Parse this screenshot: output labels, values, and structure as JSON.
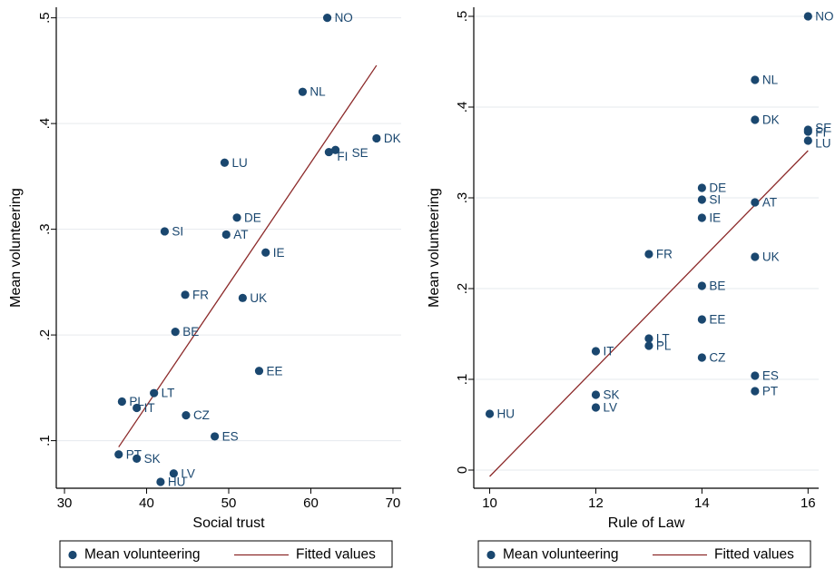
{
  "chart_data": [
    {
      "type": "scatter",
      "xlabel": "Social trust",
      "ylabel": "Mean volunteering",
      "xlim": [
        29,
        71
      ],
      "ylim": [
        0.055,
        0.51
      ],
      "xticks": [
        30,
        40,
        50,
        60,
        70
      ],
      "yticks": [
        0.1,
        0.2,
        0.3,
        0.4,
        0.5
      ],
      "ytick_labels": [
        ".1",
        ".2",
        ".3",
        ".4",
        ".5"
      ],
      "grid": true,
      "series": [
        {
          "name": "Mean volunteering",
          "marker_color": "#1a476f",
          "points": [
            {
              "label": "NO",
              "x": 62.0,
              "y": 0.5
            },
            {
              "label": "NL",
              "x": 59.0,
              "y": 0.43
            },
            {
              "label": "DK",
              "x": 68.0,
              "y": 0.386
            },
            {
              "label": "SE",
              "x": 63.0,
              "y": 0.375
            },
            {
              "label": "FI",
              "x": 62.2,
              "y": 0.373
            },
            {
              "label": "LU",
              "x": 49.5,
              "y": 0.363
            },
            {
              "label": "DE",
              "x": 51.0,
              "y": 0.311
            },
            {
              "label": "SI",
              "x": 42.2,
              "y": 0.298
            },
            {
              "label": "AT",
              "x": 49.7,
              "y": 0.295
            },
            {
              "label": "IE",
              "x": 54.5,
              "y": 0.278
            },
            {
              "label": "FR",
              "x": 44.7,
              "y": 0.238
            },
            {
              "label": "UK",
              "x": 51.7,
              "y": 0.235
            },
            {
              "label": "BE",
              "x": 43.5,
              "y": 0.203
            },
            {
              "label": "EE",
              "x": 53.7,
              "y": 0.166
            },
            {
              "label": "LT",
              "x": 40.9,
              "y": 0.145
            },
            {
              "label": "PL",
              "x": 37.0,
              "y": 0.137
            },
            {
              "label": "IT",
              "x": 38.8,
              "y": 0.131
            },
            {
              "label": "CZ",
              "x": 44.8,
              "y": 0.124
            },
            {
              "label": "ES",
              "x": 48.3,
              "y": 0.104
            },
            {
              "label": "PT",
              "x": 36.6,
              "y": 0.087
            },
            {
              "label": "SK",
              "x": 38.8,
              "y": 0.083
            },
            {
              "label": "LV",
              "x": 43.3,
              "y": 0.069
            },
            {
              "label": "HU",
              "x": 41.7,
              "y": 0.061
            }
          ]
        },
        {
          "name": "Fitted values",
          "line_color": "#8c2a2a",
          "line": [
            [
              36.6,
              0.094
            ],
            [
              68.0,
              0.455
            ]
          ]
        }
      ],
      "legend": {
        "position": "bottom",
        "entries": [
          "Mean volunteering",
          "Fitted values"
        ]
      }
    },
    {
      "type": "scatter",
      "xlabel": "Rule of Law",
      "ylabel": "Mean volunteering",
      "xlim": [
        9.7,
        16.2
      ],
      "ylim": [
        -0.02,
        0.51
      ],
      "xticks": [
        10,
        12,
        14,
        16
      ],
      "yticks": [
        0,
        0.1,
        0.2,
        0.3,
        0.4,
        0.5
      ],
      "ytick_labels": [
        "0",
        ".1",
        ".2",
        ".3",
        ".4",
        ".5"
      ],
      "grid": true,
      "series": [
        {
          "name": "Mean volunteering",
          "marker_color": "#1a476f",
          "points": [
            {
              "label": "NO",
              "x": 16,
              "y": 0.5
            },
            {
              "label": "NL",
              "x": 15,
              "y": 0.43
            },
            {
              "label": "DK",
              "x": 15,
              "y": 0.386
            },
            {
              "label": "SE",
              "x": 16,
              "y": 0.375
            },
            {
              "label": "FI",
              "x": 16,
              "y": 0.373
            },
            {
              "label": "LU",
              "x": 16,
              "y": 0.363
            },
            {
              "label": "DE",
              "x": 14,
              "y": 0.311
            },
            {
              "label": "SI",
              "x": 14,
              "y": 0.298
            },
            {
              "label": "AT",
              "x": 15,
              "y": 0.295
            },
            {
              "label": "IE",
              "x": 14,
              "y": 0.278
            },
            {
              "label": "FR",
              "x": 13,
              "y": 0.238
            },
            {
              "label": "UK",
              "x": 15,
              "y": 0.235
            },
            {
              "label": "BE",
              "x": 14,
              "y": 0.203
            },
            {
              "label": "EE",
              "x": 14,
              "y": 0.166
            },
            {
              "label": "LT",
              "x": 13,
              "y": 0.145
            },
            {
              "label": "PL",
              "x": 13,
              "y": 0.137
            },
            {
              "label": "IT",
              "x": 12,
              "y": 0.131
            },
            {
              "label": "CZ",
              "x": 14,
              "y": 0.124
            },
            {
              "label": "ES",
              "x": 15,
              "y": 0.104
            },
            {
              "label": "PT",
              "x": 15,
              "y": 0.087
            },
            {
              "label": "SK",
              "x": 12,
              "y": 0.083
            },
            {
              "label": "LV",
              "x": 12,
              "y": 0.069
            },
            {
              "label": "HU",
              "x": 10,
              "y": 0.062
            }
          ]
        },
        {
          "name": "Fitted values",
          "line_color": "#8c2a2a",
          "line": [
            [
              10,
              -0.007
            ],
            [
              16,
              0.352
            ]
          ]
        }
      ],
      "legend": {
        "position": "bottom",
        "entries": [
          "Mean volunteering",
          "Fitted values"
        ]
      }
    }
  ]
}
